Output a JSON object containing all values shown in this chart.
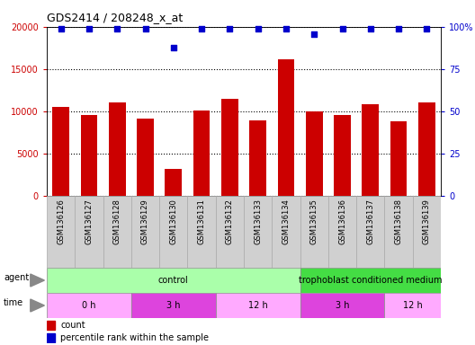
{
  "title": "GDS2414 / 208248_x_at",
  "samples": [
    "GSM136126",
    "GSM136127",
    "GSM136128",
    "GSM136129",
    "GSM136130",
    "GSM136131",
    "GSM136132",
    "GSM136133",
    "GSM136134",
    "GSM136135",
    "GSM136136",
    "GSM136137",
    "GSM136138",
    "GSM136139"
  ],
  "counts": [
    10500,
    9600,
    11100,
    9200,
    3200,
    10100,
    11500,
    8900,
    16200,
    10000,
    9600,
    10800,
    8800,
    11100
  ],
  "percentile_ranks": [
    99,
    99,
    99,
    99,
    88,
    99,
    99,
    99,
    99,
    96,
    99,
    99,
    99,
    99
  ],
  "bar_color": "#cc0000",
  "dot_color": "#0000cc",
  "ylim_left": [
    0,
    20000
  ],
  "ylim_right": [
    0,
    100
  ],
  "yticks_left": [
    0,
    5000,
    10000,
    15000,
    20000
  ],
  "yticks_right": [
    0,
    25,
    50,
    75,
    100
  ],
  "ytick_labels_left": [
    "0",
    "5000",
    "10000",
    "15000",
    "20000"
  ],
  "ytick_labels_right": [
    "0",
    "25",
    "50",
    "75",
    "100%"
  ],
  "agent_groups": [
    {
      "label": "control",
      "start": 0,
      "end": 8,
      "color": "#aaffaa"
    },
    {
      "label": "trophoblast conditioned medium",
      "start": 9,
      "end": 13,
      "color": "#44dd44"
    }
  ],
  "time_groups": [
    {
      "label": "0 h",
      "start": 0,
      "end": 2,
      "color": "#ffaaff"
    },
    {
      "label": "3 h",
      "start": 3,
      "end": 5,
      "color": "#dd44dd"
    },
    {
      "label": "12 h",
      "start": 6,
      "end": 8,
      "color": "#ffaaff"
    },
    {
      "label": "3 h",
      "start": 9,
      "end": 11,
      "color": "#dd44dd"
    },
    {
      "label": "12 h",
      "start": 12,
      "end": 13,
      "color": "#ffaaff"
    }
  ],
  "legend_count_color": "#cc0000",
  "legend_dot_color": "#0000cc",
  "tick_label_color_left": "#cc0000",
  "tick_label_color_right": "#0000cc",
  "xticklabel_gray": "#d0d0d0",
  "xticklabel_border": "#aaaaaa"
}
